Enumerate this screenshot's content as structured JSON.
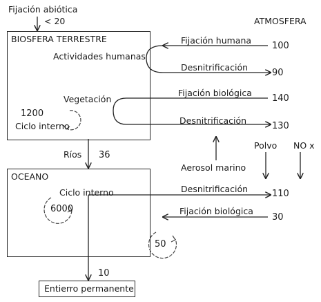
{
  "title_top": "Fijación abiótica",
  "abiotic_value": "< 20",
  "atmosphere_label": "ATMOSFERA",
  "biosphere": {
    "title": "BIOSFERA TERRESTRE",
    "human_activities": "Actividades humanas",
    "vegetation": "Vegetación",
    "internal_cycle_value": "1200",
    "internal_cycle_label": "Ciclo interno"
  },
  "flows_land": [
    {
      "label": "Fijación humana",
      "value": "100"
    },
    {
      "label": "Desnitrificación",
      "value": "90"
    },
    {
      "label": "Fijación biológica",
      "value": "140"
    },
    {
      "label": "Desnitrificación",
      "value": "130"
    }
  ],
  "rivers": {
    "label": "Ríos",
    "value": "36"
  },
  "aerosol_label": "Aerosol marino",
  "dust_label": "Polvo",
  "nox_label": "NO x",
  "ocean": {
    "title": "OCEANO",
    "internal_cycle_label": "Ciclo interno",
    "internal_cycle_value": "6000",
    "deep_cycle_value": "50"
  },
  "flows_ocean": [
    {
      "label": "Desnitrificación",
      "value": "110"
    },
    {
      "label": "Fijación biológica",
      "value": "30"
    }
  ],
  "burial": {
    "value": "10",
    "label": "Entierro permanente"
  }
}
